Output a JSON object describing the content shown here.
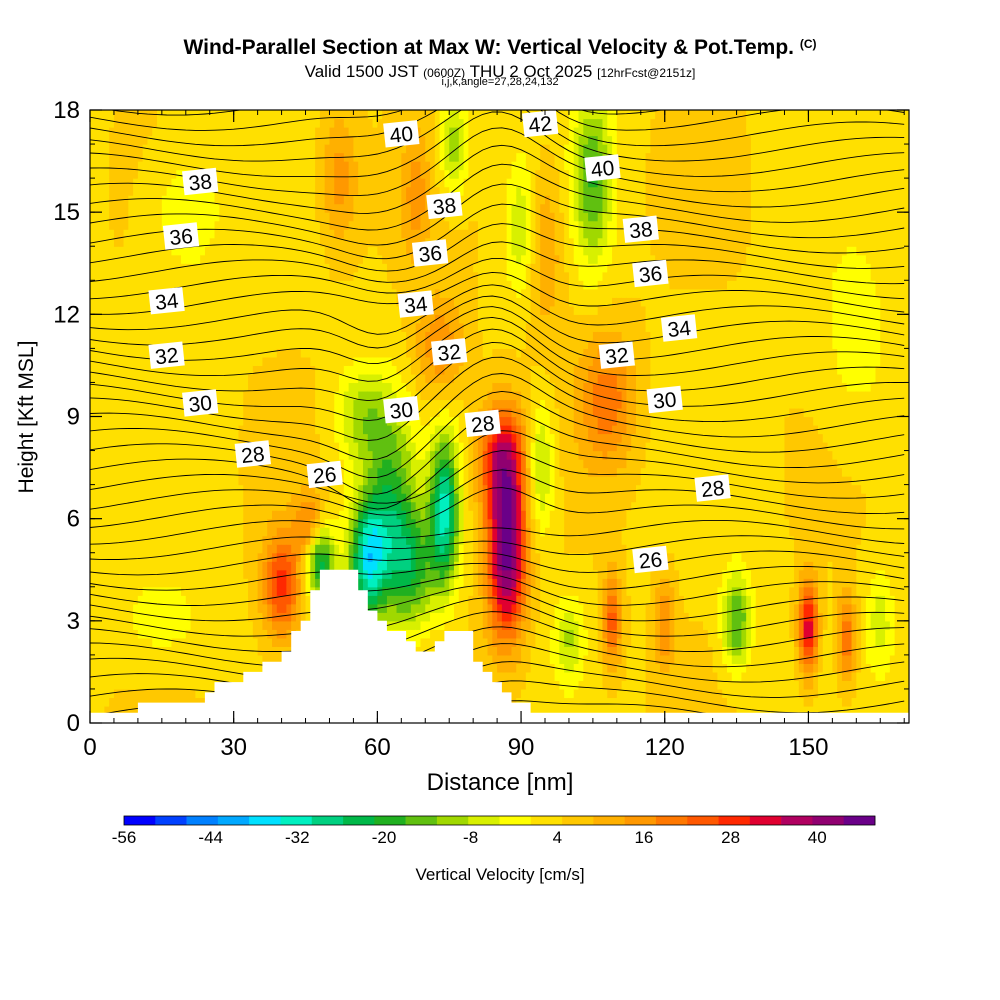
{
  "header": {
    "title": "Wind-Parallel Section at Max W: Vertical Velocity & Pot.Temp.",
    "copyright": "(C)",
    "valid_prefix": "Valid 1500 JST",
    "valid_utc": "(0600Z)",
    "valid_date": "THU 2 Oct 2025",
    "forecast": "[12hrFcst@2151z]",
    "indices": "i,j,k,angle=27,28,24,132"
  },
  "chart_data": {
    "type": "heatmap",
    "xlabel": "Distance [nm]",
    "ylabel": "Height [Kft MSL]",
    "xlim": [
      0,
      171
    ],
    "ylim": [
      0,
      18
    ],
    "x_ticks": [
      "0",
      "30",
      "60",
      "90",
      "120",
      "150"
    ],
    "y_ticks": [
      "0",
      "3",
      "6",
      "9",
      "12",
      "15",
      "18"
    ],
    "colorbar": {
      "label": "Vertical Velocity [cm/s]",
      "tick_labels": [
        "-56",
        "-44",
        "-32",
        "-20",
        "-8",
        "4",
        "16",
        "28",
        "40"
      ],
      "range": [
        -56,
        48
      ],
      "colors": [
        "#0000ff",
        "#0040ff",
        "#0080ff",
        "#00a8ff",
        "#00e0ff",
        "#00f0c0",
        "#00d080",
        "#00b848",
        "#20b020",
        "#60c010",
        "#a0d800",
        "#d8f000",
        "#ffff00",
        "#ffe000",
        "#ffc800",
        "#ffb000",
        "#ff9800",
        "#ff7800",
        "#ff5800",
        "#ff2800",
        "#e00030",
        "#b00060",
        "#900070",
        "#6a0088"
      ]
    },
    "velocity_cells": [
      {
        "x": 48,
        "z": 4.8,
        "w": -30,
        "sx": 3,
        "sz": 1.2
      },
      {
        "x": 58,
        "z": 4.8,
        "w": -36,
        "sx": 4,
        "sz": 1.8
      },
      {
        "x": 63,
        "z": 6.5,
        "w": -20,
        "sx": 5,
        "sz": 2.6
      },
      {
        "x": 67,
        "z": 4.5,
        "w": -22,
        "sx": 5,
        "sz": 1.8
      },
      {
        "x": 74,
        "z": 6.2,
        "w": -34,
        "sx": 3,
        "sz": 2.2
      },
      {
        "x": 57,
        "z": 9.0,
        "w": -14,
        "sx": 6,
        "sz": 1.5
      },
      {
        "x": 87,
        "z": 5.0,
        "w": 42,
        "sx": 4,
        "sz": 2.5
      },
      {
        "x": 86,
        "z": 7.8,
        "w": 26,
        "sx": 5,
        "sz": 1.6
      },
      {
        "x": 40,
        "z": 4.0,
        "w": 24,
        "sx": 4,
        "sz": 1.6
      },
      {
        "x": 46,
        "z": 5.8,
        "w": 18,
        "sx": 3,
        "sz": 1.0
      },
      {
        "x": 94,
        "z": 7.5,
        "w": -16,
        "sx": 3,
        "sz": 2.0
      },
      {
        "x": 100,
        "z": 2.5,
        "w": -12,
        "sx": 3,
        "sz": 1.2
      },
      {
        "x": 109,
        "z": 3.0,
        "w": 20,
        "sx": 2,
        "sz": 1.4
      },
      {
        "x": 120,
        "z": 3.0,
        "w": 14,
        "sx": 2,
        "sz": 1.4
      },
      {
        "x": 135,
        "z": 3.0,
        "w": -22,
        "sx": 3,
        "sz": 1.4
      },
      {
        "x": 150,
        "z": 2.8,
        "w": 30,
        "sx": 2,
        "sz": 1.4
      },
      {
        "x": 158,
        "z": 2.5,
        "w": 18,
        "sx": 2,
        "sz": 1.4
      },
      {
        "x": 165,
        "z": 3.0,
        "w": -10,
        "sx": 3,
        "sz": 1.5
      },
      {
        "x": 105,
        "z": 16.0,
        "w": -20,
        "sx": 4,
        "sz": 2.5
      },
      {
        "x": 95,
        "z": 14.0,
        "w": 10,
        "sx": 4,
        "sz": 2.5
      },
      {
        "x": 108,
        "z": 9.5,
        "w": 16,
        "sx": 6,
        "sz": 2.0
      },
      {
        "x": 76,
        "z": 17.0,
        "w": -16,
        "sx": 3,
        "sz": 1.5
      },
      {
        "x": 90,
        "z": 14.5,
        "w": -12,
        "sx": 3,
        "sz": 2.0
      },
      {
        "x": 73,
        "z": 11.0,
        "w": 14,
        "sx": 5,
        "sz": 1.5
      },
      {
        "x": 68,
        "z": 15.5,
        "w": 10,
        "sx": 3,
        "sz": 2.0
      },
      {
        "x": 52,
        "z": 16.0,
        "w": 12,
        "sx": 4,
        "sz": 2.0
      },
      {
        "x": 20,
        "z": 15.0,
        "w": -8,
        "sx": 8,
        "sz": 2.0
      },
      {
        "x": 15,
        "z": 3.0,
        "w": -6,
        "sx": 10,
        "sz": 1.5
      },
      {
        "x": 160,
        "z": 11.0,
        "w": -6,
        "sx": 8,
        "sz": 3.0
      }
    ],
    "terrain_kft": [
      [
        0,
        0.3
      ],
      [
        22,
        0.6
      ],
      [
        26,
        1.0
      ],
      [
        35,
        1.6
      ],
      [
        40,
        2.0
      ],
      [
        45,
        3.0
      ],
      [
        48,
        4.5
      ],
      [
        55,
        4.5
      ],
      [
        60,
        3.0
      ],
      [
        66,
        2.5
      ],
      [
        70,
        2.0
      ],
      [
        74,
        2.6
      ],
      [
        79,
        2.6
      ],
      [
        82,
        1.5
      ],
      [
        90,
        0.5
      ],
      [
        100,
        0.3
      ],
      [
        171,
        0.3
      ]
    ],
    "isentrope_labels": [
      {
        "text": "40",
        "x": 65,
        "z": 17.3
      },
      {
        "text": "42",
        "x": 94,
        "z": 17.6
      },
      {
        "text": "38",
        "x": 23,
        "z": 15.9
      },
      {
        "text": "38",
        "x": 74,
        "z": 15.2
      },
      {
        "text": "40",
        "x": 107,
        "z": 16.3
      },
      {
        "text": "36",
        "x": 19,
        "z": 14.3
      },
      {
        "text": "36",
        "x": 71,
        "z": 13.8
      },
      {
        "text": "38",
        "x": 115,
        "z": 14.5
      },
      {
        "text": "36",
        "x": 117,
        "z": 13.2
      },
      {
        "text": "34",
        "x": 16,
        "z": 12.4
      },
      {
        "text": "34",
        "x": 68,
        "z": 12.3
      },
      {
        "text": "34",
        "x": 123,
        "z": 11.6
      },
      {
        "text": "32",
        "x": 16,
        "z": 10.8
      },
      {
        "text": "32",
        "x": 75,
        "z": 10.9
      },
      {
        "text": "32",
        "x": 110,
        "z": 10.8
      },
      {
        "text": "30",
        "x": 23,
        "z": 9.4
      },
      {
        "text": "30",
        "x": 65,
        "z": 9.2
      },
      {
        "text": "30",
        "x": 120,
        "z": 9.5
      },
      {
        "text": "28",
        "x": 34,
        "z": 7.9
      },
      {
        "text": "28",
        "x": 82,
        "z": 8.8
      },
      {
        "text": "28",
        "x": 130,
        "z": 6.9
      },
      {
        "text": "26",
        "x": 49,
        "z": 7.3
      },
      {
        "text": "26",
        "x": 117,
        "z": 4.8
      }
    ]
  }
}
